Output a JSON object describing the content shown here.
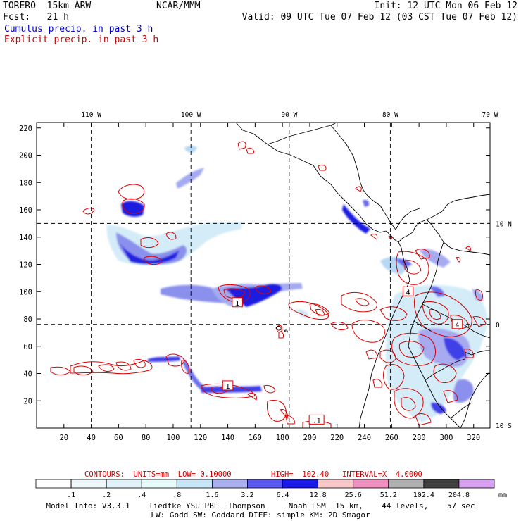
{
  "header": {
    "model": "TORERO  15km ARW",
    "org": "NCAR/MMM",
    "init": "Init: 12 UTC Mon 06 Feb 12",
    "fcst": "Fcst:   21 h",
    "valid": "Valid: 09 UTC Tue 07 Feb 12 (03 CST Tue 07 Feb 12)",
    "cumulus": "Cumulus precip. in past 3 h",
    "explicit": "Explicit precip. in past 3 h"
  },
  "chart_data": {
    "type": "heatmap",
    "title": "Cumulus precip. in past 3 h / Explicit precip. in past 3 h",
    "x_grid_ticks": [
      20,
      40,
      60,
      80,
      100,
      120,
      140,
      160,
      180,
      200,
      220,
      240,
      260,
      280,
      300,
      320
    ],
    "y_grid_ticks": [
      20,
      40,
      60,
      80,
      100,
      120,
      140,
      160,
      180,
      200,
      220
    ],
    "xlim": [
      0,
      332
    ],
    "ylim": [
      0,
      224
    ],
    "lon_labels": [
      {
        "label": "110 W",
        "grid_x": 40
      },
      {
        "label": "100 W",
        "grid_x": 113
      },
      {
        "label": "90 W",
        "grid_x": 185
      },
      {
        "label": "80 W",
        "grid_x": 259
      },
      {
        "label": "70 W",
        "grid_x": 332
      }
    ],
    "lat_labels": [
      {
        "label": "10 N",
        "grid_y": 150
      },
      {
        "label": "0",
        "grid_y": 76
      },
      {
        "label": "10 S",
        "grid_y": 2
      }
    ],
    "graticule": {
      "lon_grid_x": [
        40,
        113,
        185,
        259
      ],
      "lat_grid_y": [
        150,
        76
      ]
    },
    "contour_labels": [
      {
        "text": "1",
        "x": 147,
        "y": 92
      },
      {
        "text": "4",
        "x": 272,
        "y": 100
      },
      {
        "text": "4",
        "x": 308,
        "y": 76
      },
      {
        "text": "1",
        "x": 140,
        "y": 31
      },
      {
        "text": ".1",
        "x": 205,
        "y": 6
      }
    ],
    "contours": {
      "units_text": "CONTOURS:  UNITS=mm  LOW= 0.10000",
      "high_text": "HIGH=  102.40",
      "interval_text": "INTERVAL=X  4.0000",
      "units": "mm",
      "low": 0.1,
      "high": 102.4,
      "interval_factor": 4.0
    },
    "colorbar": {
      "thresholds": [
        ".1",
        ".2",
        ".4",
        ".8",
        "1.6",
        "3.2",
        "6.4",
        "12.8",
        "25.6",
        "51.2",
        "102.4",
        "204.8"
      ],
      "unit": "mm",
      "colors": [
        "#ffffff",
        "#eef8fb",
        "#e1f3f8",
        "#e8fbfb",
        "#c8e7f6",
        "#a8b0f0",
        "#5a5af0",
        "#1a1ae6",
        "#f8c8c8",
        "#f090c0",
        "#b0b0b0",
        "#404040",
        "#d8a0f0"
      ]
    },
    "footer_line1": "Model Info: V3.3.1    Tiedtke YSU PBL  Thompson     Noah LSM  15 km,    44 levels,    57 sec",
    "footer_line2": "LW: Godd SW: Goddard DIFF: simple KM: 2D Smagor"
  },
  "colors": {
    "cumulus": "#3333e6",
    "explicit": "#dd0000",
    "coast": "#000000"
  }
}
